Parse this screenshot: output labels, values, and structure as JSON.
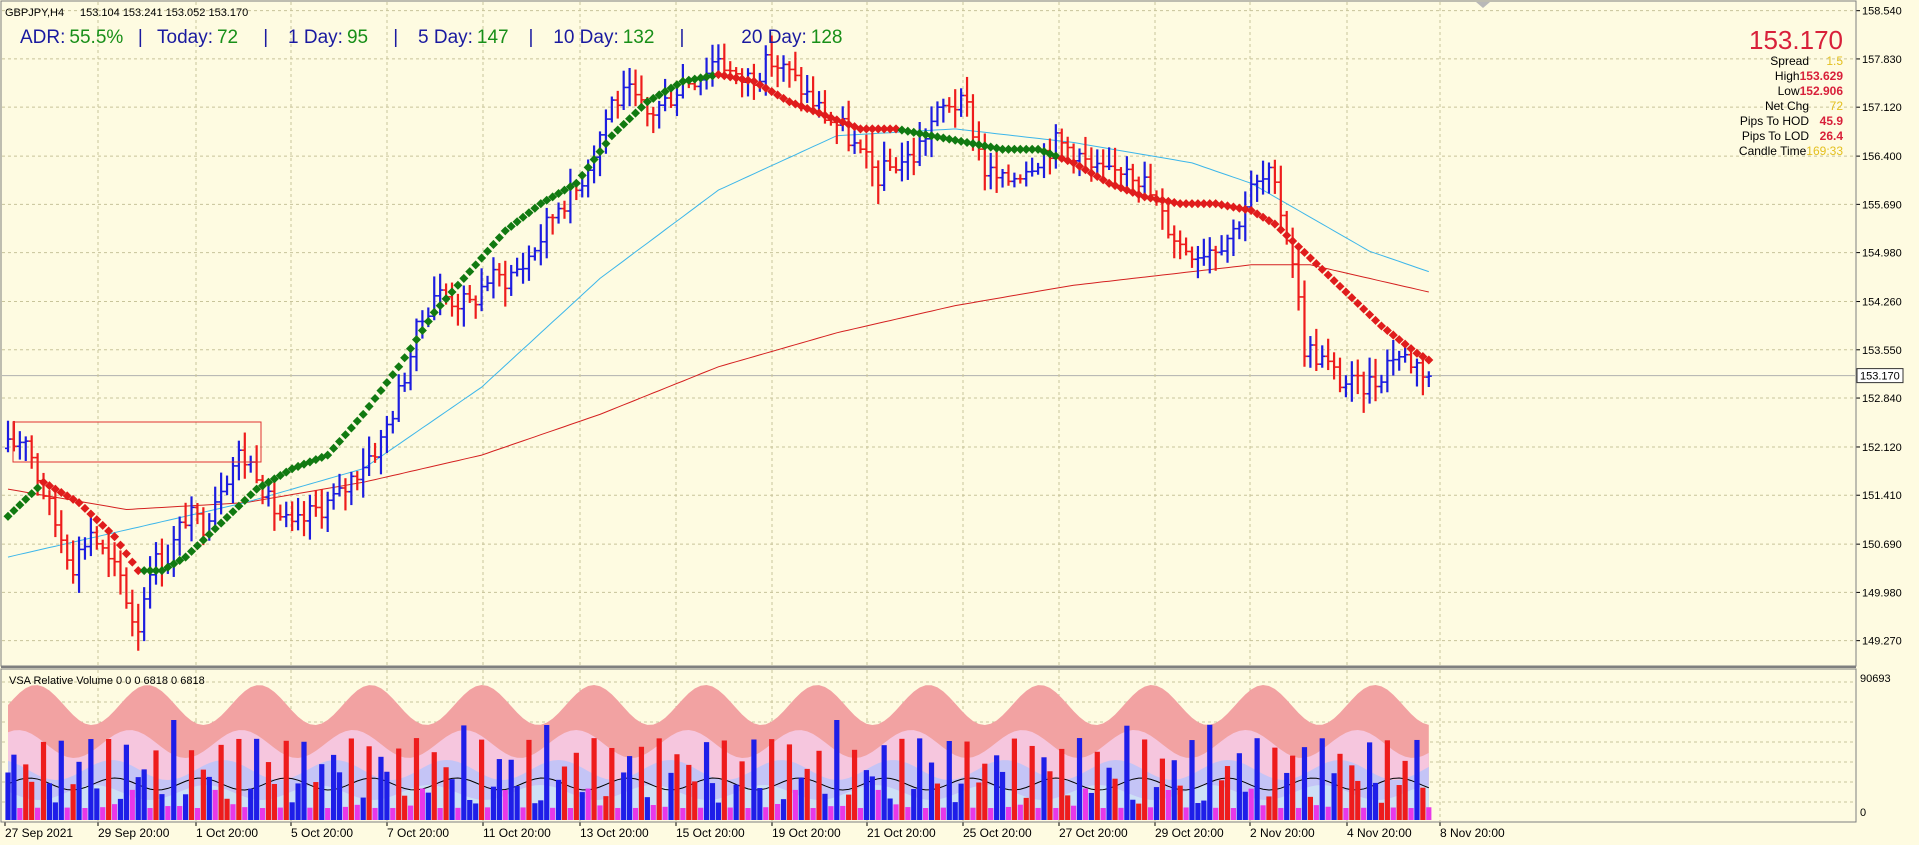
{
  "window": {
    "symbol_title": "GBPJPY,H4",
    "ohlc": "153.104 153.241 153.052 153.170"
  },
  "stats": {
    "adr_label": "ADR:",
    "adr_value": "55.5%",
    "today_label": "Today:",
    "today_value": "72",
    "day1_label": "1 Day:",
    "day1_value": "95",
    "day5_label": "5 Day:",
    "day5_value": "147",
    "day10_label": "10 Day:",
    "day10_value": "132",
    "day20_label": "20 Day:",
    "day20_value": "128"
  },
  "info_panel": {
    "price": "153.170",
    "rows": [
      {
        "label": "Spread",
        "value": "1.5",
        "color": "#e4c020"
      },
      {
        "label": "High",
        "value": "153.629",
        "color": "#d8203a"
      },
      {
        "label": "Low",
        "value": "152.906",
        "color": "#d8203a"
      },
      {
        "label": "Net Chg",
        "value": "72",
        "color": "#e4c020"
      },
      {
        "label": "Pips To HOD",
        "value": "45.9",
        "color": "#d8203a"
      },
      {
        "label": "Pips To LOD",
        "value": "26.4",
        "color": "#d8203a"
      },
      {
        "label": "Candle Time",
        "value": "169:33",
        "color": "#e4c020"
      }
    ]
  },
  "indicator": {
    "title": "VSA Relative Volume 0 0 0 6818 0 6818",
    "axis_max": "90693",
    "axis_min": "0"
  },
  "colors": {
    "background": "#fefbe1",
    "grid": "#c8c49a",
    "bull": "#1d1de0",
    "bear": "#ee1c1c",
    "trail_up": "#117a11",
    "trail_down": "#e01c1c",
    "ma_fast": "#3cb6ea",
    "ma_slow": "#d42020"
  },
  "chart_data": {
    "type": "bar",
    "title": "GBPJPY,H4",
    "price_axis": {
      "min": 149.0,
      "max": 158.55,
      "ticks": [
        "158.540",
        "157.830",
        "157.120",
        "156.400",
        "155.690",
        "154.980",
        "154.260",
        "153.550",
        "152.840",
        "152.120",
        "151.410",
        "150.690",
        "149.980",
        "149.270"
      ]
    },
    "current_price": 153.17,
    "date_labels": [
      "27 Sep 2021",
      "29 Sep 20:00",
      "1 Oct 20:00",
      "5 Oct 20:00",
      "7 Oct 20:00",
      "11 Oct 20:00",
      "13 Oct 20:00",
      "15 Oct 20:00",
      "19 Oct 20:00",
      "21 Oct 20:00",
      "25 Oct 20:00",
      "27 Oct 20:00",
      "29 Oct 20:00",
      "2 Nov 20:00",
      "4 Nov 20:00",
      "8 Nov 20:00"
    ],
    "close_anchors": [
      [
        0,
        152.1
      ],
      [
        3,
        152.3
      ],
      [
        5,
        151.7
      ],
      [
        8,
        151.0
      ],
      [
        11,
        150.4
      ],
      [
        14,
        150.9
      ],
      [
        17,
        150.4
      ],
      [
        19,
        150.2
      ],
      [
        21,
        149.6
      ],
      [
        22,
        149.5
      ],
      [
        24,
        150.4
      ],
      [
        27,
        150.5
      ],
      [
        30,
        151.1
      ],
      [
        33,
        151.0
      ],
      [
        36,
        151.6
      ],
      [
        39,
        152.0
      ],
      [
        42,
        151.8
      ],
      [
        44,
        151.3
      ],
      [
        48,
        150.9
      ],
      [
        52,
        151.2
      ],
      [
        56,
        151.4
      ],
      [
        60,
        151.9
      ],
      [
        63,
        152.2
      ],
      [
        66,
        152.9
      ],
      [
        69,
        153.8
      ],
      [
        72,
        154.4
      ],
      [
        75,
        154.3
      ],
      [
        78,
        154.2
      ],
      [
        81,
        154.6
      ],
      [
        84,
        154.6
      ],
      [
        87,
        154.8
      ],
      [
        90,
        155.2
      ],
      [
        93,
        155.7
      ],
      [
        96,
        155.9
      ],
      [
        99,
        156.5
      ],
      [
        102,
        157.2
      ],
      [
        105,
        157.3
      ],
      [
        108,
        157.0
      ],
      [
        111,
        157.2
      ],
      [
        114,
        157.5
      ],
      [
        117,
        157.6
      ],
      [
        120,
        157.9
      ],
      [
        123,
        157.5
      ],
      [
        126,
        157.6
      ],
      [
        129,
        157.8
      ],
      [
        132,
        157.6
      ],
      [
        135,
        157.3
      ],
      [
        138,
        157.0
      ],
      [
        141,
        156.8
      ],
      [
        144,
        156.4
      ],
      [
        147,
        156.1
      ],
      [
        150,
        156.3
      ],
      [
        153,
        156.4
      ],
      [
        156,
        156.9
      ],
      [
        159,
        157.2
      ],
      [
        162,
        157.1
      ],
      [
        165,
        156.2
      ],
      [
        168,
        156.0
      ],
      [
        171,
        156.2
      ],
      [
        174,
        156.4
      ],
      [
        177,
        156.6
      ],
      [
        180,
        156.5
      ],
      [
        183,
        156.2
      ],
      [
        186,
        156.1
      ],
      [
        189,
        156.3
      ],
      [
        192,
        156.0
      ],
      [
        195,
        155.5
      ],
      [
        198,
        155.1
      ],
      [
        201,
        155.0
      ],
      [
        204,
        155.1
      ],
      [
        207,
        155.3
      ],
      [
        210,
        155.9
      ],
      [
        213,
        156.1
      ],
      [
        215,
        155.6
      ],
      [
        217,
        154.9
      ],
      [
        219,
        153.6
      ],
      [
        222,
        153.4
      ],
      [
        225,
        153.1
      ],
      [
        228,
        153.0
      ],
      [
        231,
        153.1
      ],
      [
        234,
        153.5
      ],
      [
        237,
        153.4
      ],
      [
        240,
        153.2
      ]
    ],
    "trail_anchors": [
      [
        0,
        151.1
      ],
      [
        6,
        151.6
      ],
      [
        12,
        151.3
      ],
      [
        18,
        150.8
      ],
      [
        22,
        150.3
      ],
      [
        26,
        150.3
      ],
      [
        30,
        150.5
      ],
      [
        36,
        151.0
      ],
      [
        42,
        151.5
      ],
      [
        48,
        151.8
      ],
      [
        54,
        152.0
      ],
      [
        60,
        152.6
      ],
      [
        66,
        153.3
      ],
      [
        72,
        154.1
      ],
      [
        78,
        154.7
      ],
      [
        84,
        155.3
      ],
      [
        90,
        155.7
      ],
      [
        96,
        156.0
      ],
      [
        102,
        156.7
      ],
      [
        108,
        157.2
      ],
      [
        114,
        157.5
      ],
      [
        120,
        157.6
      ],
      [
        126,
        157.5
      ],
      [
        132,
        157.2
      ],
      [
        138,
        157.0
      ],
      [
        144,
        156.8
      ],
      [
        150,
        156.8
      ],
      [
        156,
        156.7
      ],
      [
        162,
        156.6
      ],
      [
        168,
        156.5
      ],
      [
        174,
        156.5
      ],
      [
        180,
        156.3
      ],
      [
        186,
        156.0
      ],
      [
        192,
        155.8
      ],
      [
        198,
        155.7
      ],
      [
        204,
        155.7
      ],
      [
        210,
        155.6
      ],
      [
        214,
        155.4
      ],
      [
        220,
        154.9
      ],
      [
        226,
        154.4
      ],
      [
        232,
        153.9
      ],
      [
        238,
        153.5
      ],
      [
        240,
        153.4
      ]
    ],
    "trail_down_ranges": [
      [
        6,
        22
      ],
      [
        120,
        150
      ],
      [
        178,
        210
      ],
      [
        210,
        240
      ]
    ],
    "ma_fast_anchors": [
      [
        0,
        150.5
      ],
      [
        20,
        150.9
      ],
      [
        40,
        151.3
      ],
      [
        60,
        151.8
      ],
      [
        80,
        153.0
      ],
      [
        100,
        154.6
      ],
      [
        120,
        155.9
      ],
      [
        140,
        156.7
      ],
      [
        160,
        156.8
      ],
      [
        180,
        156.6
      ],
      [
        200,
        156.3
      ],
      [
        210,
        156.0
      ],
      [
        220,
        155.5
      ],
      [
        230,
        155.0
      ],
      [
        240,
        154.7
      ]
    ],
    "ma_slow_anchors": [
      [
        0,
        151.5
      ],
      [
        20,
        151.2
      ],
      [
        40,
        151.3
      ],
      [
        60,
        151.6
      ],
      [
        80,
        152.0
      ],
      [
        100,
        152.6
      ],
      [
        120,
        153.3
      ],
      [
        140,
        153.8
      ],
      [
        160,
        154.2
      ],
      [
        180,
        154.5
      ],
      [
        200,
        154.7
      ],
      [
        210,
        154.8
      ],
      [
        220,
        154.8
      ],
      [
        230,
        154.6
      ],
      [
        240,
        154.4
      ]
    ]
  }
}
